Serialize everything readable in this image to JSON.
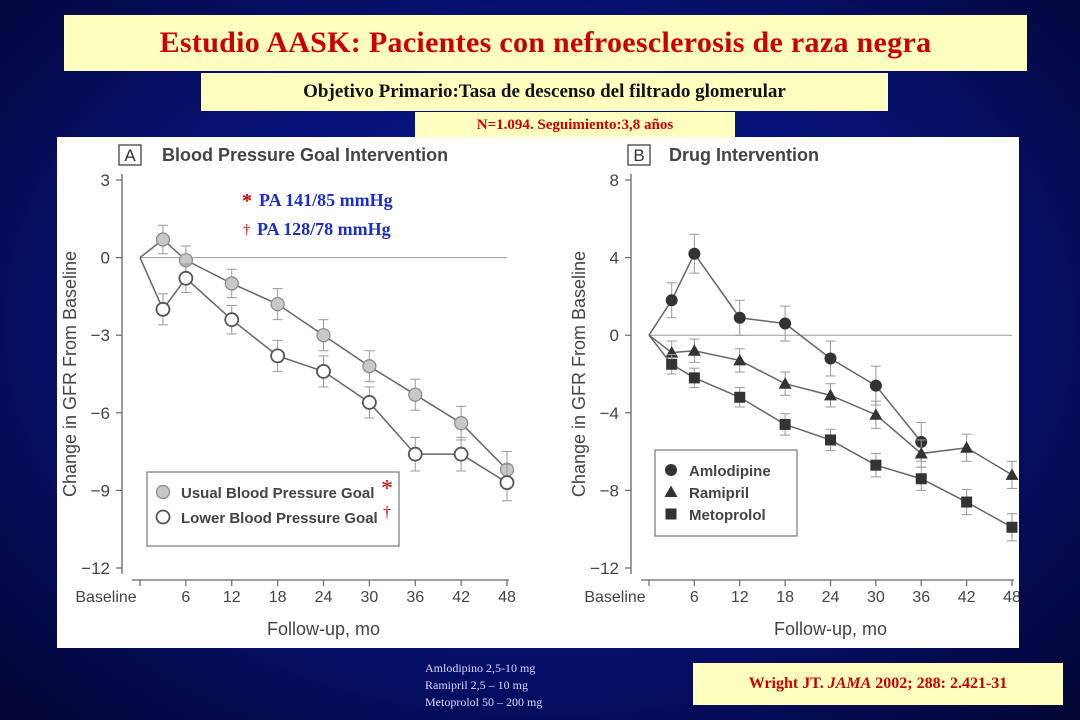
{
  "slide": {
    "title": "Estudio AASK: Pacientes con nefroesclerosis de raza negra",
    "subtitle": "Objetivo Primario:Tasa de descenso del filtrado glomerular",
    "sample": "N=1.094. Seguimiento:3,8 años",
    "doses": [
      "Amlodipino 2,5-10 mg",
      "Ramipril  2,5 – 10 mg",
      "Metoprolol 50 – 200 mg"
    ],
    "reference_author": "Wright JT.",
    "reference_journal": "JAMA",
    "reference_detail": "2002; 288: 2.421-31",
    "bp_note1_symbol": "*",
    "bp_note1": "PA 141/85 mmHg",
    "bp_note2_symbol": "†",
    "bp_note2": "PA 128/78 mmHg",
    "colors": {
      "title_red": "#cc0000",
      "note_blue": "#1a2ec8",
      "box_yellow": "#ffffc0"
    }
  },
  "chart_data": [
    {
      "type": "line",
      "panel_letter": "A",
      "title": "Blood Pressure Goal Intervention",
      "xlabel": "Follow-up, mo",
      "ylabel": "Change in GFR From Baseline",
      "categories": [
        "Baseline",
        "6",
        "12",
        "18",
        "24",
        "30",
        "36",
        "42",
        "48"
      ],
      "ylim": [
        -12,
        3
      ],
      "yticks": [
        3,
        0,
        -3,
        -6,
        -9,
        -12
      ],
      "ytick_labels": [
        "3",
        "0",
        "−3",
        "−6",
        "−9",
        "−12"
      ],
      "legend_position": "bottom-left",
      "legend_annotations": [
        "*",
        "†"
      ],
      "series": [
        {
          "name": "Usual Blood Pressure Goal",
          "marker": "circle-filled-gray",
          "x": [
            0,
            3,
            6,
            12,
            18,
            24,
            30,
            36,
            42,
            48
          ],
          "y": [
            0,
            0.7,
            -0.1,
            -1.0,
            -1.8,
            -3.0,
            -4.2,
            -5.3,
            -6.4,
            -8.2
          ],
          "err": [
            0,
            0.55,
            0.55,
            0.55,
            0.6,
            0.6,
            0.6,
            0.6,
            0.65,
            0.7
          ]
        },
        {
          "name": "Lower Blood Pressure Goal",
          "marker": "circle-open",
          "x": [
            0,
            3,
            6,
            12,
            18,
            24,
            30,
            36,
            42,
            48
          ],
          "y": [
            0,
            -2.0,
            -0.8,
            -2.4,
            -3.8,
            -4.4,
            -5.6,
            -7.6,
            -7.6,
            -8.7
          ],
          "err": [
            0,
            0.6,
            0.55,
            0.55,
            0.6,
            0.6,
            0.6,
            0.65,
            0.65,
            0.7
          ]
        }
      ]
    },
    {
      "type": "line",
      "panel_letter": "B",
      "title": "Drug Intervention",
      "xlabel": "Follow-up, mo",
      "ylabel": "Change in GFR From Baseline",
      "categories": [
        "Baseline",
        "6",
        "12",
        "18",
        "24",
        "30",
        "36",
        "42",
        "48"
      ],
      "ylim": [
        -12,
        8
      ],
      "yticks": [
        8,
        4,
        0,
        -4,
        -8,
        -12
      ],
      "ytick_labels": [
        "8",
        "4",
        "0",
        "−4",
        "−8",
        "−12"
      ],
      "legend_position": "bottom-left",
      "series": [
        {
          "name": "Amlodipine",
          "marker": "circle",
          "x": [
            0,
            3,
            6,
            12,
            18,
            24,
            30,
            36
          ],
          "y": [
            0,
            1.8,
            4.2,
            0.9,
            0.6,
            -1.2,
            -2.6,
            -5.5
          ],
          "err": [
            0,
            0.9,
            1.0,
            0.9,
            0.9,
            0.9,
            1.0,
            1.0
          ]
        },
        {
          "name": "Ramipril",
          "marker": "triangle",
          "x": [
            0,
            3,
            6,
            12,
            18,
            24,
            30,
            36,
            42,
            48
          ],
          "y": [
            0,
            -0.9,
            -0.8,
            -1.3,
            -2.5,
            -3.1,
            -4.1,
            -6.1,
            -5.8,
            -7.2
          ],
          "err": [
            0,
            0.6,
            0.6,
            0.6,
            0.6,
            0.6,
            0.7,
            0.7,
            0.7,
            0.7
          ]
        },
        {
          "name": "Metoprolol",
          "marker": "square",
          "x": [
            0,
            3,
            6,
            12,
            18,
            24,
            30,
            36,
            42,
            48
          ],
          "y": [
            0,
            -1.5,
            -2.2,
            -3.2,
            -4.6,
            -5.4,
            -6.7,
            -7.4,
            -8.6,
            -9.9
          ],
          "err": [
            0,
            0.5,
            0.5,
            0.5,
            0.55,
            0.55,
            0.6,
            0.6,
            0.65,
            0.7
          ]
        }
      ]
    }
  ]
}
